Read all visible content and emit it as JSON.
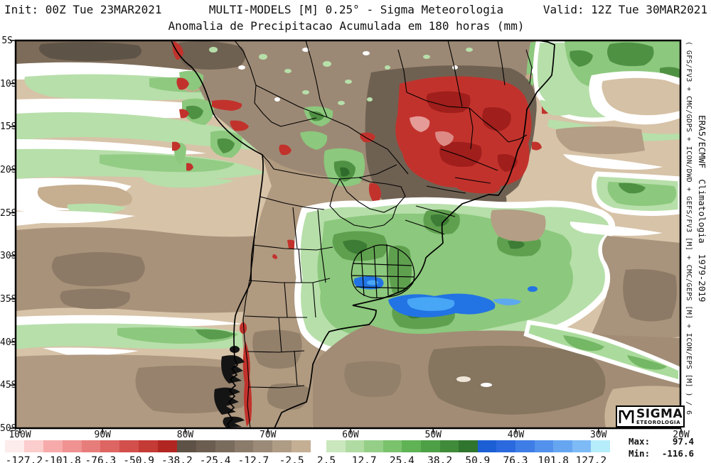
{
  "header": {
    "init": "Init: 00Z Tue 23MAR2021",
    "model": "MULTI-MODELS [M] 0.25° - Sigma Meteorologia",
    "valid": "Valid: 12Z Tue 30MAR2021",
    "title": "Anomalia de Precipitacao Acumulada em 180 horas (mm)"
  },
  "map": {
    "lat_labels": [
      "5S",
      "10S",
      "15S",
      "20S",
      "25S",
      "30S",
      "35S",
      "40S",
      "45S",
      "50S"
    ],
    "lon_labels": [
      "100W",
      "90W",
      "80W",
      "70W",
      "60W",
      "50W",
      "40W",
      "30W",
      "20W"
    ]
  },
  "annotations": {
    "ensemble_note": "( GFS/FV3 + CMC/GDPS + ICON/DWD + GEFS/FV3 [M] + CMC/GEPS [M] + ICON/EPS [M] ) / 6",
    "climatology_note": "ERA5/ECMWF  Climatologia  1979-2019"
  },
  "colorbar": {
    "negative": {
      "segments": 16,
      "colors": [
        "#fdecec",
        "#fbcdcc",
        "#f6abaa",
        "#ef9291",
        "#e77d7a",
        "#dd6562",
        "#d24f4b",
        "#c43a35",
        "#b22622",
        "#5e5246",
        "#6b5e50",
        "#7a6c5d",
        "#8a7b6a",
        "#9b8a77",
        "#af9c85",
        "#c4af94"
      ],
      "labels": [
        "-127.2",
        "-101.8",
        "-76.3",
        "-50.9",
        "-38.2",
        "-25.4",
        "-12.7",
        "-2.5"
      ],
      "boundaries": [
        1,
        3,
        5,
        7,
        9,
        11,
        13,
        15
      ]
    },
    "positive": {
      "segments": 15,
      "colors": [
        "#cbe7bd",
        "#b0dba2",
        "#95cf87",
        "#7ac26c",
        "#60b355",
        "#4da046",
        "#3f8b3a",
        "#30752e",
        "#1c5fd4",
        "#2b69de",
        "#3e7de6",
        "#5291ec",
        "#66a6f1",
        "#7dbaf6",
        "#b6edfb"
      ],
      "labels": [
        "2.5",
        "12.7",
        "25.4",
        "38.2",
        "50.9",
        "76.3",
        "101.8",
        "127.2"
      ],
      "boundaries": [
        0,
        2,
        4,
        6,
        8,
        10,
        12,
        14
      ]
    }
  },
  "stats": {
    "max_label": "Max:",
    "max_value": "97.4",
    "min_label": "Min:",
    "min_value": "-116.6"
  },
  "logo": {
    "name": "SIGMA",
    "subname": "ETEOROLOGIA"
  },
  "field_colors": {
    "near_zero_tan": "#d7c3a8",
    "dry_brown": "#8d7a66",
    "very_dry_red": "#c2322c",
    "wet_green": "#8cc87d",
    "very_wet_blue": "#2273e4"
  }
}
